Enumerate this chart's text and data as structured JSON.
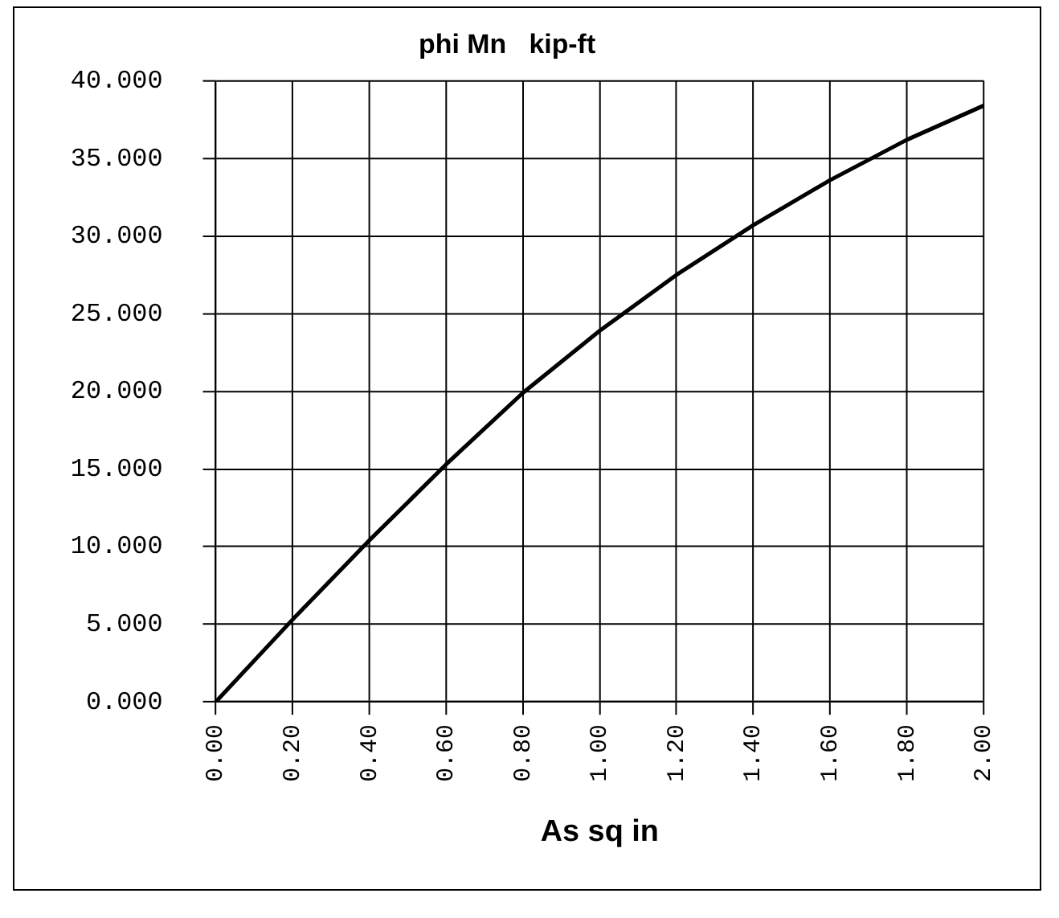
{
  "chart_data": {
    "type": "line",
    "title": "phi Mn   kip-ft",
    "xlabel": "As sq in",
    "categories": [
      "0.00",
      "0.20",
      "0.40",
      "0.60",
      "0.80",
      "1.00",
      "1.20",
      "1.40",
      "1.60",
      "1.80",
      "2.00"
    ],
    "series": [
      {
        "color": "#000000",
        "values": [
          0,
          5.3,
          10.4,
          15.3,
          19.9,
          23.9,
          27.5,
          30.7,
          33.6,
          36.2,
          38.4
        ]
      }
    ],
    "ylim": [
      0,
      40
    ],
    "yticks": [
      {
        "value": 0,
        "label": "0.000"
      },
      {
        "value": 5,
        "label": "5.000"
      },
      {
        "value": 10,
        "label": "10.000"
      },
      {
        "value": 15,
        "label": "15.000"
      },
      {
        "value": 20,
        "label": "20.000"
      },
      {
        "value": 25,
        "label": "25.000"
      },
      {
        "value": 30,
        "label": "30.000"
      },
      {
        "value": 35,
        "label": "35.000"
      },
      {
        "value": 40,
        "label": "40.000"
      }
    ],
    "grid": true,
    "legend": false,
    "marker": "none",
    "line_style": "solid"
  }
}
